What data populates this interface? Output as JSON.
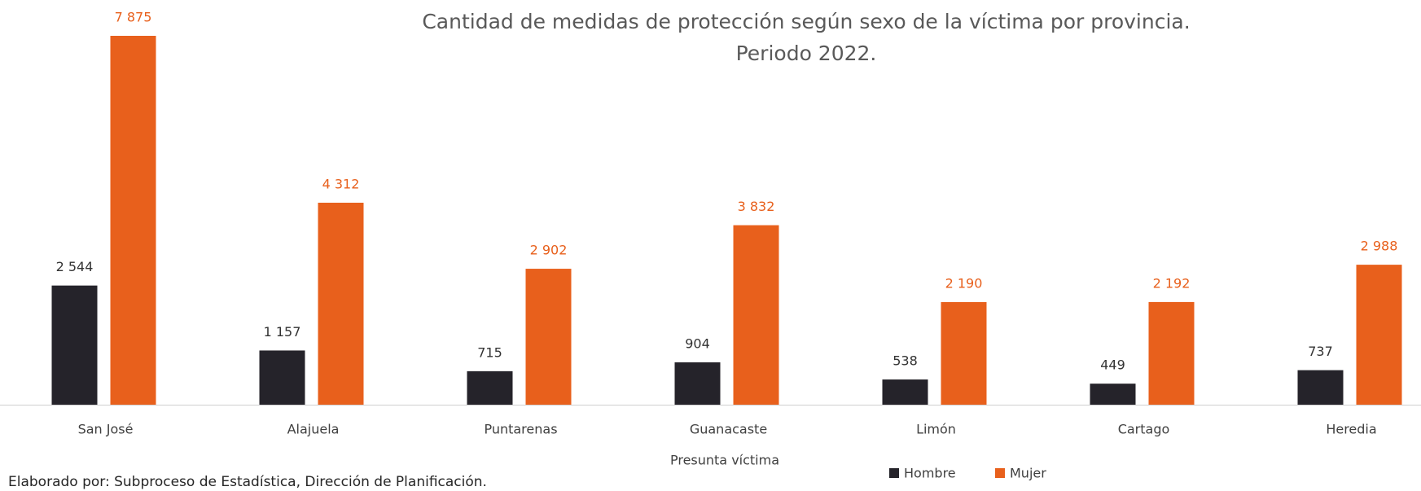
{
  "chart_data": {
    "type": "bar",
    "title": "Cantidad de medidas de protección según sexo de la víctima por provincia.",
    "subtitle": "Periodo 2022.",
    "x_label": "Presunta víctima",
    "source": "Elaborado por: Subproceso de Estadística, Dirección de Planificación.",
    "categories": [
      "San José",
      "Alajuela",
      "Puntarenas",
      "Guanacaste",
      "Limón",
      "Cartago",
      "Heredia"
    ],
    "series": [
      {
        "name": "Hombre",
        "color": "#25232a",
        "values": [
          2544,
          1157,
          715,
          904,
          538,
          449,
          737
        ],
        "value_labels": [
          "2 544",
          "1 157",
          "715",
          "904",
          "538",
          "449",
          "737"
        ]
      },
      {
        "name": "Mujer",
        "color": "#e8601c",
        "values": [
          7875,
          4312,
          2902,
          3832,
          2190,
          2192,
          2988
        ],
        "value_labels": [
          "7 875",
          "4 312",
          "2 902",
          "3 832",
          "2 190",
          "2 192",
          "2 988"
        ]
      }
    ],
    "legend": "bottom"
  }
}
